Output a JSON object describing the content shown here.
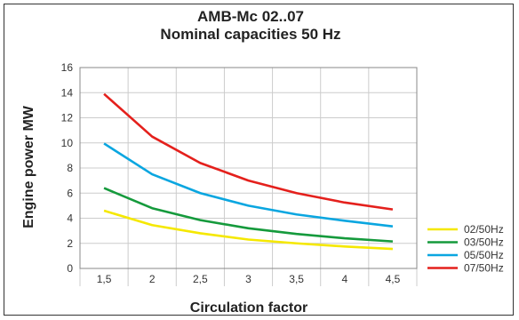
{
  "chart_data": {
    "type": "line",
    "title": "AMB-Mc 02..07",
    "subtitle": "Nominal capacities 50 Hz",
    "xlabel": "Circulation factor",
    "ylabel": "Engine power MW",
    "x": [
      1.5,
      2,
      2.5,
      3,
      3.5,
      4,
      4.5
    ],
    "x_tick_labels": [
      "1,5",
      "2",
      "2,5",
      "3",
      "3,5",
      "4",
      "4,5"
    ],
    "xlim": [
      1.25,
      4.75
    ],
    "ylim": [
      0,
      16
    ],
    "y_ticks": [
      0,
      2,
      4,
      6,
      8,
      10,
      12,
      14,
      16
    ],
    "y_tick_labels": [
      "0",
      "2",
      "4",
      "6",
      "8",
      "10",
      "12",
      "14",
      "16"
    ],
    "grid": true,
    "legend_position": "right",
    "series": [
      {
        "name": "02/50Hz",
        "color": "#f5e800",
        "values": [
          4.6,
          3.45,
          2.8,
          2.3,
          2.0,
          1.75,
          1.55
        ]
      },
      {
        "name": "03/50Hz",
        "color": "#159a3c",
        "values": [
          6.4,
          4.8,
          3.85,
          3.2,
          2.75,
          2.4,
          2.15
        ]
      },
      {
        "name": "05/50Hz",
        "color": "#0aa6e0",
        "values": [
          9.95,
          7.5,
          6.0,
          5.0,
          4.3,
          3.8,
          3.35
        ]
      },
      {
        "name": "07/50Hz",
        "color": "#e4201c",
        "values": [
          13.9,
          10.5,
          8.4,
          7.0,
          6.0,
          5.25,
          4.7
        ]
      }
    ]
  }
}
